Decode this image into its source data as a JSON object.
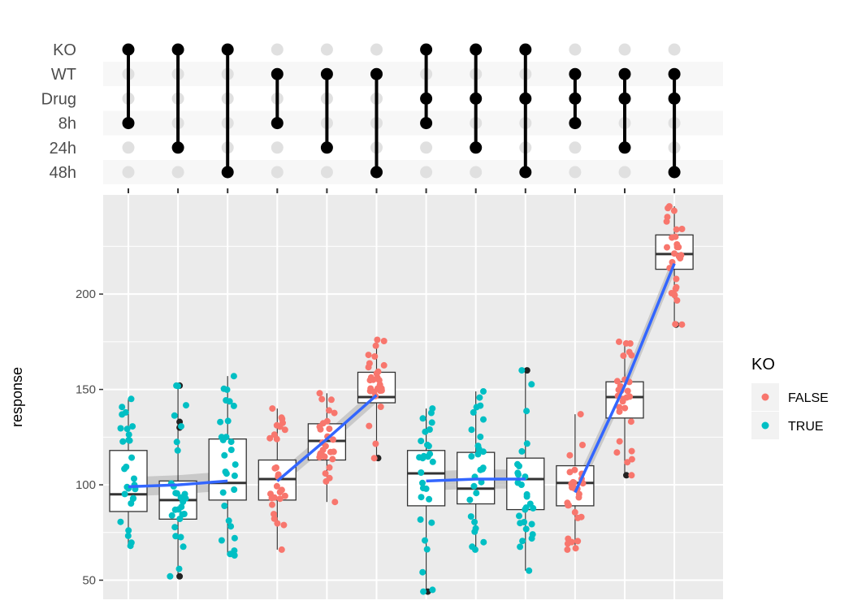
{
  "colors": {
    "false": "#F8766D",
    "true": "#00BFC4",
    "trend": "#3366FF",
    "panel": "#EBEBEB",
    "band": "#F7F7F7",
    "dot_on": "#000000",
    "dot_off": "#E0E0E0",
    "ribbon": "#BDBDBD"
  },
  "chart_data": {
    "type": "upset-boxplot",
    "ylabel": "response",
    "ylim": [
      40,
      252
    ],
    "yticks": [
      50,
      100,
      150,
      200
    ],
    "sets": [
      "KO",
      "WT",
      "Drug",
      "8h",
      "24h",
      "48h"
    ],
    "columns": [
      {
        "active": [
          "KO",
          "8h"
        ],
        "ko": true,
        "box": {
          "q1": 86,
          "median": 95,
          "q3": 118,
          "lower": 68,
          "upper": 145
        },
        "outliers": []
      },
      {
        "active": [
          "KO",
          "24h"
        ],
        "ko": true,
        "box": {
          "q1": 82,
          "median": 92,
          "q3": 102,
          "lower": 52,
          "upper": 152
        },
        "outliers": [
          52,
          130,
          133,
          152
        ]
      },
      {
        "active": [
          "KO",
          "48h"
        ],
        "ko": true,
        "box": {
          "q1": 92,
          "median": 101,
          "q3": 124,
          "lower": 63,
          "upper": 157
        },
        "outliers": []
      },
      {
        "active": [
          "WT",
          "8h"
        ],
        "ko": false,
        "box": {
          "q1": 92,
          "median": 103,
          "q3": 113,
          "lower": 66,
          "upper": 140
        },
        "outliers": []
      },
      {
        "active": [
          "WT",
          "24h"
        ],
        "ko": false,
        "box": {
          "q1": 113,
          "median": 123,
          "q3": 132,
          "lower": 91,
          "upper": 148
        },
        "outliers": []
      },
      {
        "active": [
          "WT",
          "48h"
        ],
        "ko": false,
        "box": {
          "q1": 143,
          "median": 146,
          "q3": 159,
          "lower": 114,
          "upper": 176
        },
        "outliers": [
          114
        ]
      },
      {
        "active": [
          "KO",
          "Drug",
          "8h"
        ],
        "ko": true,
        "box": {
          "q1": 89,
          "median": 106,
          "q3": 118,
          "lower": 44,
          "upper": 140
        },
        "outliers": [
          44
        ]
      },
      {
        "active": [
          "KO",
          "Drug",
          "24h"
        ],
        "ko": true,
        "box": {
          "q1": 90,
          "median": 98,
          "q3": 117,
          "lower": 66,
          "upper": 149
        },
        "outliers": []
      },
      {
        "active": [
          "KO",
          "Drug",
          "48h"
        ],
        "ko": true,
        "box": {
          "q1": 87,
          "median": 103,
          "q3": 114,
          "lower": 55,
          "upper": 160
        },
        "outliers": [
          160
        ]
      },
      {
        "active": [
          "WT",
          "Drug",
          "8h"
        ],
        "ko": false,
        "box": {
          "q1": 89,
          "median": 101,
          "q3": 110,
          "lower": 66,
          "upper": 137
        },
        "outliers": []
      },
      {
        "active": [
          "WT",
          "Drug",
          "24h"
        ],
        "ko": false,
        "box": {
          "q1": 135,
          "median": 146,
          "q3": 154,
          "lower": 105,
          "upper": 175
        },
        "outliers": [
          105
        ]
      },
      {
        "active": [
          "WT",
          "Drug",
          "48h"
        ],
        "ko": false,
        "box": {
          "q1": 213,
          "median": 221,
          "q3": 231,
          "lower": 184,
          "upper": 246
        },
        "outliers": [
          184
        ]
      }
    ],
    "trend_lines": [
      {
        "columns": [
          0,
          1,
          2
        ],
        "values": [
          99,
          100,
          102
        ],
        "ribbon": 5
      },
      {
        "columns": [
          3,
          4,
          5
        ],
        "values": [
          102,
          124,
          147
        ],
        "ribbon": 4
      },
      {
        "columns": [
          6,
          7,
          8
        ],
        "values": [
          102,
          103,
          103
        ],
        "ribbon": 5
      },
      {
        "columns": [
          9,
          10,
          11
        ],
        "values": [
          96,
          152,
          216
        ],
        "ribbon": 5
      }
    ]
  },
  "legend": {
    "title": "KO",
    "items": [
      {
        "label": "FALSE",
        "key": "false"
      },
      {
        "label": "TRUE",
        "key": "true"
      }
    ]
  }
}
